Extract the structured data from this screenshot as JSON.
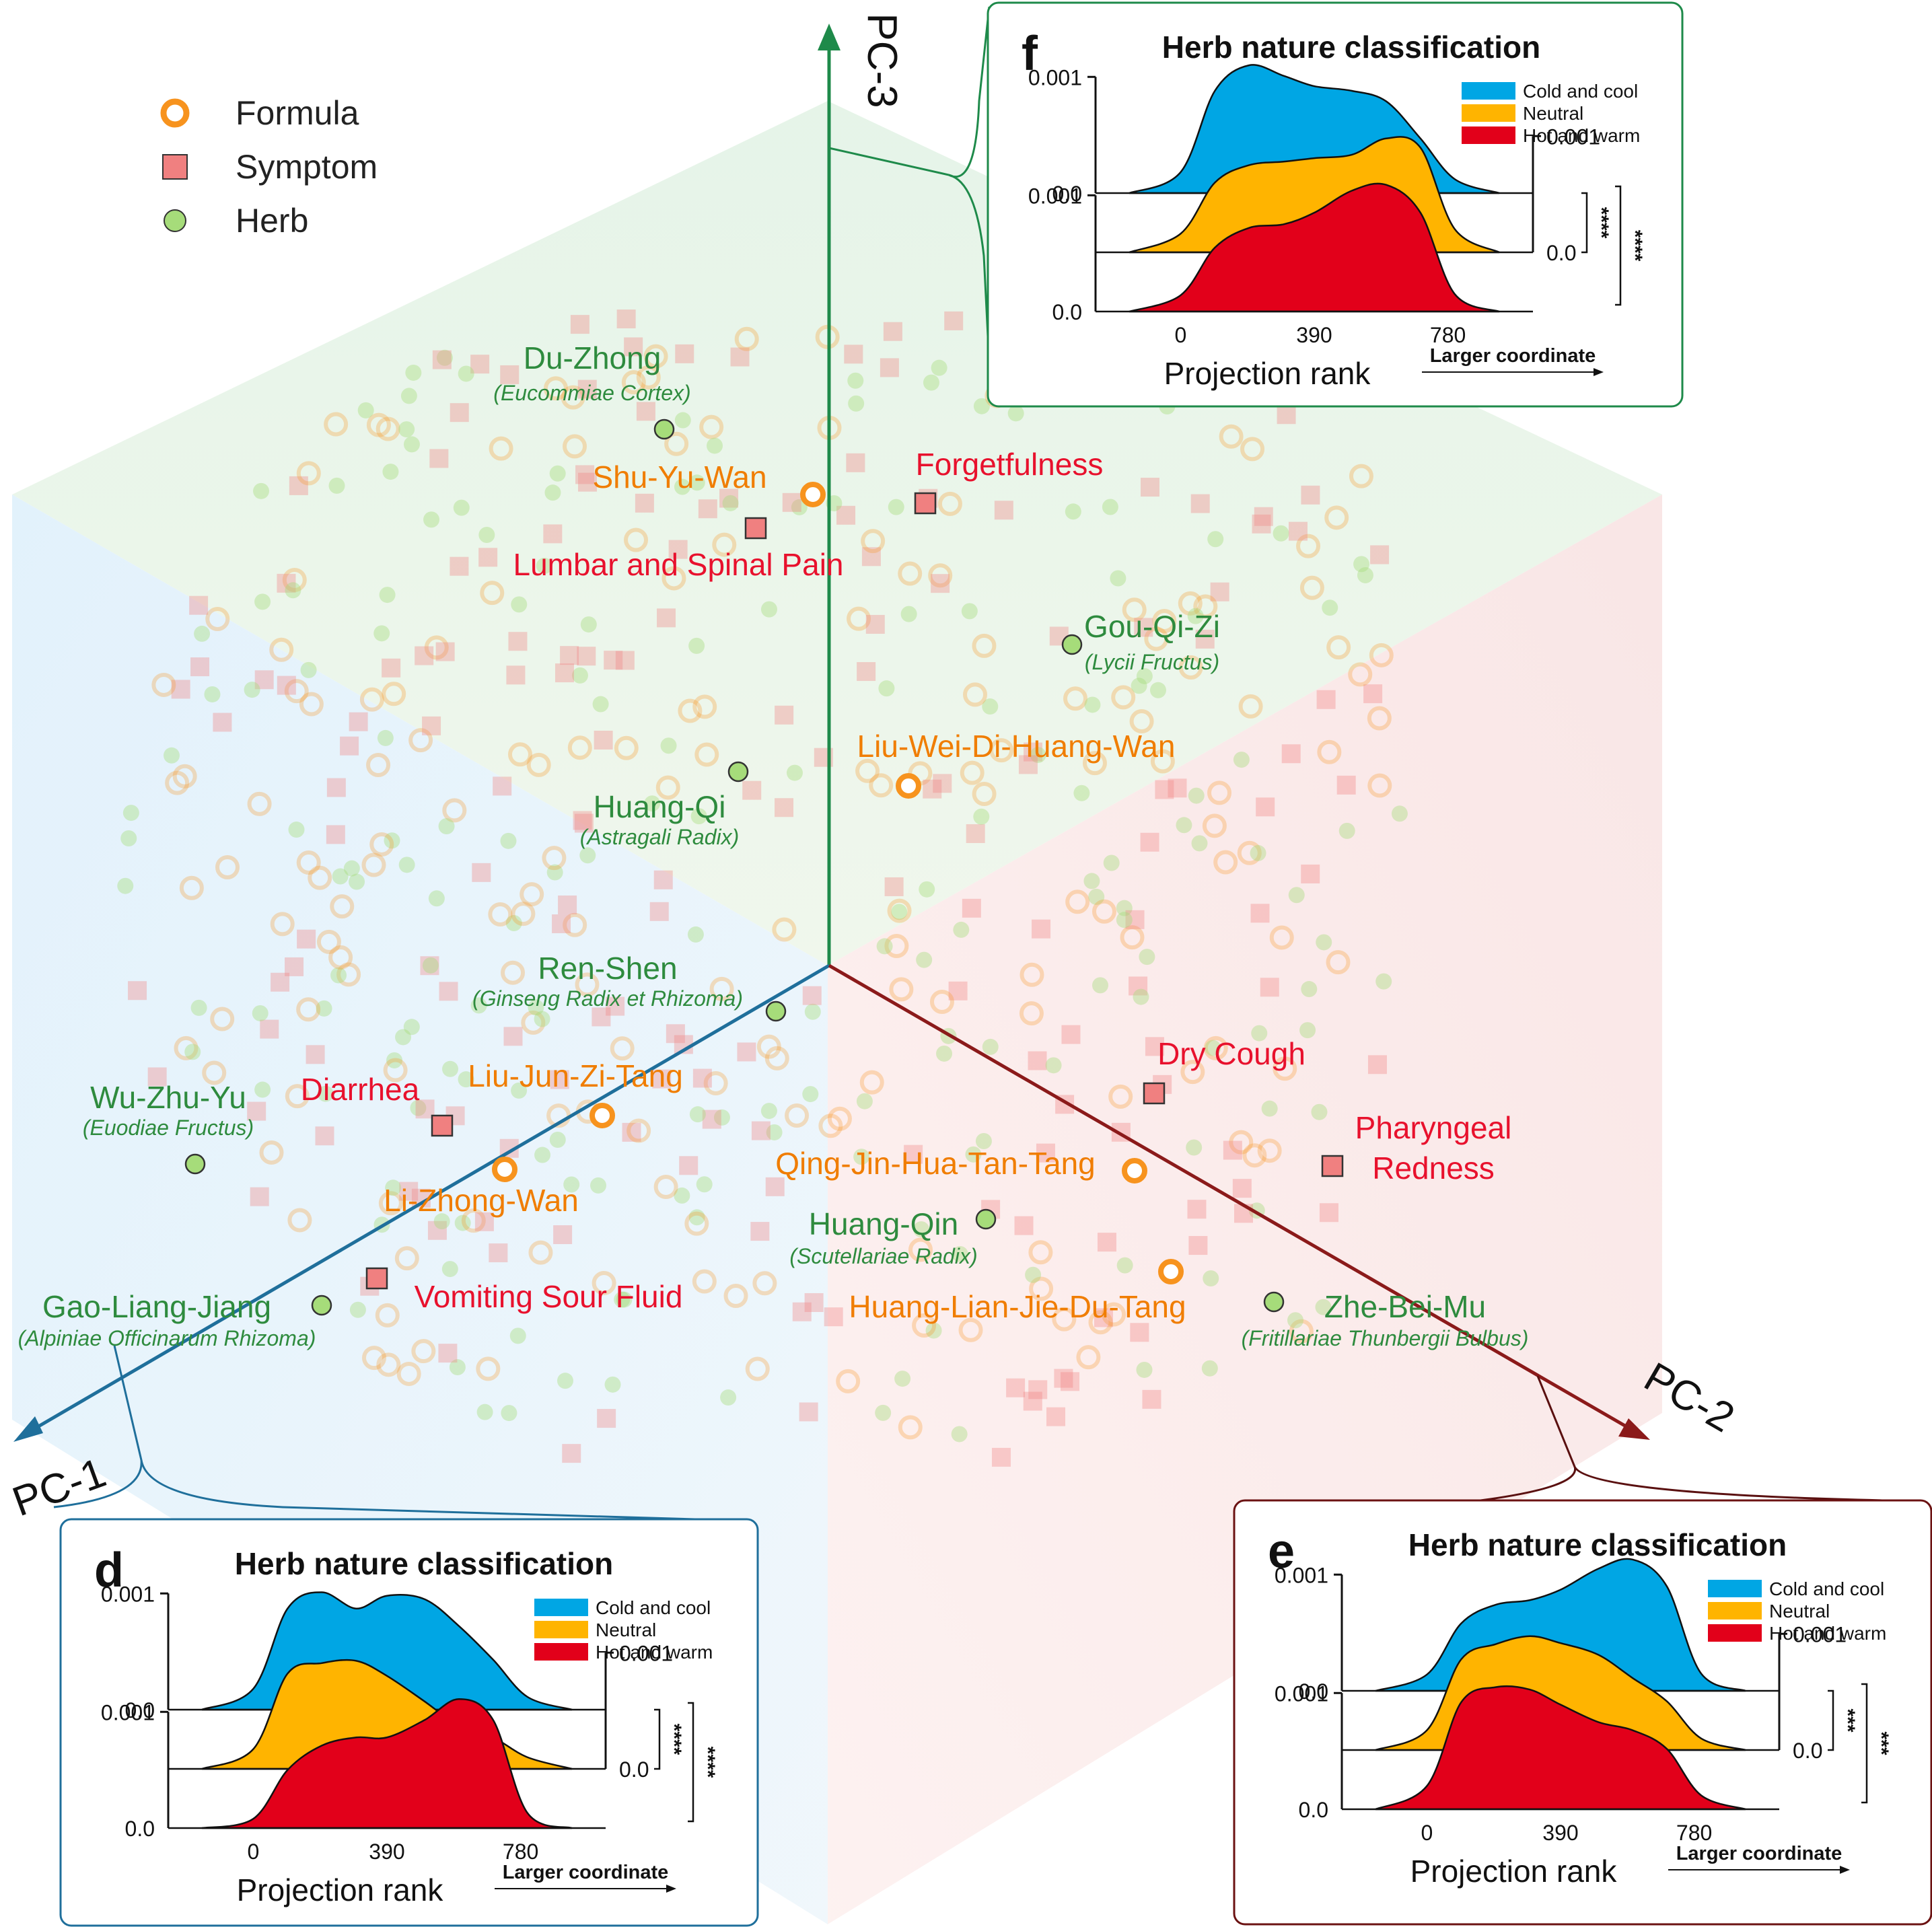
{
  "colors": {
    "formula": "#f7931e",
    "symptom": "#f08080",
    "herb": "#a6dc7a",
    "pc1": "#1f6f9b",
    "pc2": "#8b1a1a",
    "pc3": "#1e8a4a",
    "cold": "#00a6e4",
    "neutral": "#ffb400",
    "hot": "#e2001a",
    "formulaText": "#f07d00",
    "symptomText": "#e8112d",
    "herbText": "#2e8b3e"
  },
  "legend": [
    {
      "kind": "formula",
      "label": "Formula"
    },
    {
      "kind": "symptom",
      "label": "Symptom"
    },
    {
      "kind": "herb",
      "label": "Herb"
    }
  ],
  "axes": {
    "pc1": "PC-1",
    "pc2": "PC-2",
    "pc3": "PC-3"
  },
  "points": [
    {
      "kind": "herb",
      "name": "Du-Zhong",
      "latin": "(Eucommiae Cortex)"
    },
    {
      "kind": "formula",
      "name": "Shu-Yu-Wan"
    },
    {
      "kind": "symptom",
      "name": "Forgetfulness"
    },
    {
      "kind": "symptom",
      "name": "Lumbar and Spinal Pain"
    },
    {
      "kind": "herb",
      "name": "Gou-Qi-Zi",
      "latin": "(Lycii Fructus)"
    },
    {
      "kind": "formula",
      "name": "Liu-Wei-Di-Huang-Wan"
    },
    {
      "kind": "herb",
      "name": "Huang-Qi",
      "latin": "(Astragali Radix)"
    },
    {
      "kind": "herb",
      "name": "Ren-Shen",
      "latin": "(Ginseng Radix et Rhizoma)"
    },
    {
      "kind": "symptom",
      "name": "Dry Cough"
    },
    {
      "kind": "herb",
      "name": "Wu-Zhu-Yu",
      "latin": "(Euodiae Fructus)"
    },
    {
      "kind": "symptom",
      "name": "Diarrhea"
    },
    {
      "kind": "formula",
      "name": "Liu-Jun-Zi-Tang"
    },
    {
      "kind": "symptom",
      "name": "Pharyngeal Redness"
    },
    {
      "kind": "formula",
      "name": "Li-Zhong-Wan"
    },
    {
      "kind": "formula",
      "name": "Qing-Jin-Hua-Tan-Tang"
    },
    {
      "kind": "herb",
      "name": "Huang-Qin",
      "latin": "(Scutellariae Radix)"
    },
    {
      "kind": "symptom",
      "name": "Vomiting Sour Fluid"
    },
    {
      "kind": "herb",
      "name": "Gao-Liang-Jiang",
      "latin": "(Alpiniae Officinarum Rhizoma)"
    },
    {
      "kind": "formula",
      "name": "Huang-Lian-Jie-Du-Tang"
    },
    {
      "kind": "herb",
      "name": "Zhe-Bei-Mu",
      "latin": "(Fritillariae Thunbergii Bulbus)"
    }
  ],
  "chart_data": [
    {
      "panel": "f",
      "type": "area",
      "title": "Herb nature classification",
      "xlabel": "Projection rank",
      "arrow_label": "Larger coordinate",
      "xticks": [
        "0",
        "390",
        "780"
      ],
      "yticks": [
        "0.0",
        "0.001"
      ],
      "series": [
        {
          "name": "Cold and cool",
          "x": [
            -150,
            0,
            100,
            200,
            300,
            390,
            500,
            600,
            700,
            800,
            930
          ],
          "values": [
            0,
            0.00018,
            0.00088,
            0.0011,
            0.00101,
            0.00092,
            0.00088,
            0.00079,
            0.00047,
            0.00012,
            0
          ]
        },
        {
          "name": "Neutral",
          "x": [
            -150,
            0,
            100,
            200,
            300,
            390,
            500,
            600,
            700,
            800,
            930
          ],
          "values": [
            0,
            0.00016,
            0.0006,
            0.00075,
            0.00078,
            0.00081,
            0.00084,
            0.00098,
            0.0009,
            0.0002,
            0
          ]
        },
        {
          "name": "Hot and warm",
          "x": [
            -150,
            0,
            100,
            200,
            300,
            390,
            500,
            600,
            700,
            800,
            930
          ],
          "values": [
            0,
            0.00014,
            0.00055,
            0.00072,
            0.00075,
            0.00085,
            0.00104,
            0.00109,
            0.00085,
            0.00015,
            0
          ]
        }
      ],
      "significance": [
        "****",
        "****"
      ]
    },
    {
      "panel": "d",
      "type": "area",
      "title": "Herb nature classification",
      "xlabel": "Projection rank",
      "arrow_label": "Larger coordinate",
      "xticks": [
        "0",
        "390",
        "780"
      ],
      "yticks": [
        "0.0",
        "0.001"
      ],
      "series": [
        {
          "name": "Cold and cool",
          "x": [
            -150,
            0,
            100,
            200,
            300,
            390,
            500,
            600,
            700,
            800,
            930
          ],
          "values": [
            0,
            0.00018,
            0.00087,
            0.00101,
            0.00087,
            0.00098,
            0.00095,
            0.00072,
            0.00043,
            0.00011,
            0
          ]
        },
        {
          "name": "Neutral",
          "x": [
            -150,
            0,
            100,
            200,
            300,
            390,
            500,
            600,
            700,
            800,
            930
          ],
          "values": [
            0,
            0.00017,
            0.00082,
            0.00091,
            0.00093,
            0.0008,
            0.00058,
            0.00037,
            0.00027,
            0.0001,
            0
          ]
        },
        {
          "name": "Hot and warm",
          "x": [
            -150,
            0,
            100,
            200,
            300,
            390,
            500,
            600,
            700,
            800,
            930
          ],
          "values": [
            0,
            8e-05,
            0.0005,
            0.00071,
            0.00078,
            0.00078,
            0.00093,
            0.00111,
            0.00093,
            0.00013,
            0
          ]
        }
      ],
      "significance": [
        "****",
        "****"
      ]
    },
    {
      "panel": "e",
      "type": "area",
      "title": "Herb nature classification",
      "xlabel": "Projection rank",
      "arrow_label": "Larger coordinate",
      "xticks": [
        "0",
        "390",
        "780"
      ],
      "yticks": [
        "0.0",
        "0.001"
      ],
      "series": [
        {
          "name": "Cold and cool",
          "x": [
            -150,
            0,
            100,
            200,
            300,
            390,
            500,
            600,
            700,
            800,
            930
          ],
          "values": [
            0,
            0.00014,
            0.00058,
            0.00074,
            0.00078,
            0.00087,
            0.00105,
            0.00113,
            0.0009,
            0.00015,
            0
          ]
        },
        {
          "name": "Neutral",
          "x": [
            -150,
            0,
            100,
            200,
            300,
            390,
            500,
            600,
            700,
            800,
            930
          ],
          "values": [
            0,
            0.00017,
            0.00078,
            0.00091,
            0.00098,
            0.00092,
            0.00082,
            0.00062,
            0.00042,
            0.0001,
            0
          ]
        },
        {
          "name": "Hot and warm",
          "x": [
            -150,
            0,
            100,
            200,
            300,
            390,
            500,
            600,
            700,
            800,
            930
          ],
          "values": [
            0,
            0.0002,
            0.00092,
            0.00105,
            0.00103,
            0.0009,
            0.00075,
            0.00068,
            0.00052,
            0.00012,
            0
          ]
        }
      ],
      "significance": [
        "***",
        "***"
      ]
    }
  ]
}
